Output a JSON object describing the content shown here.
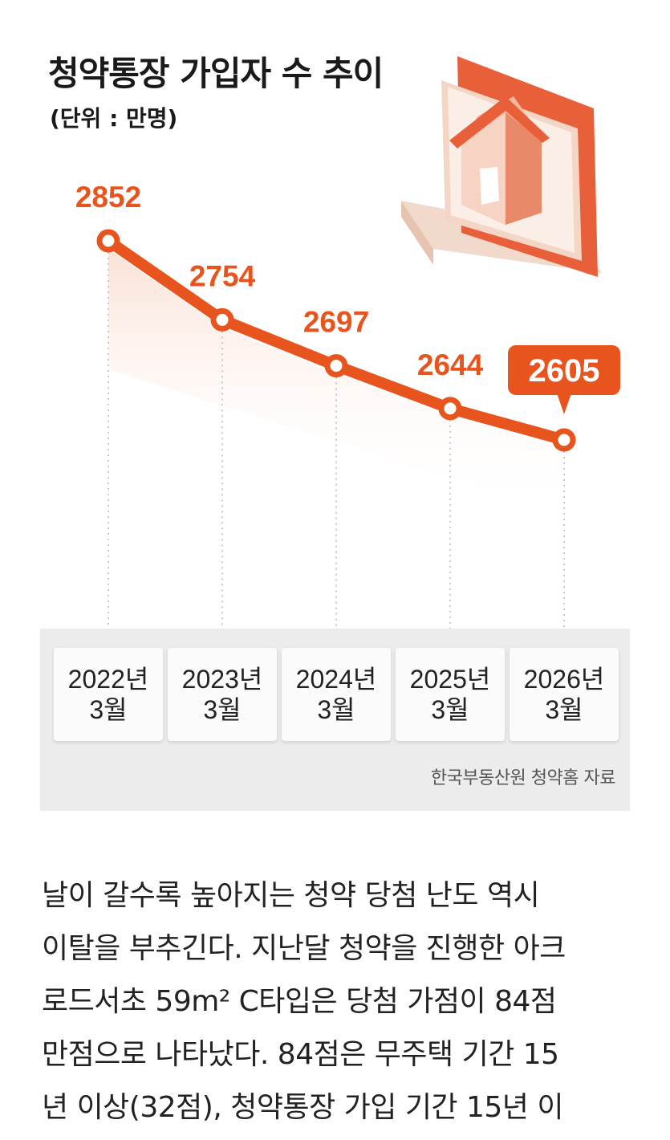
{
  "chart_data": {
    "type": "line",
    "title": "청약통장 가입자 수 추이",
    "subtitle": "(단위 : 만명)",
    "categories": [
      {
        "year": "2022년",
        "month": "3월"
      },
      {
        "year": "2023년",
        "month": "3월"
      },
      {
        "year": "2024년",
        "month": "3월"
      },
      {
        "year": "2025년",
        "month": "3월"
      },
      {
        "year": "2026년",
        "month": "3월"
      }
    ],
    "values": [
      2852,
      2754,
      2697,
      2644,
      2605
    ],
    "highlight_index": 4,
    "source": "한국부동산원 청약홈 자료",
    "line_color": "#e8541e",
    "highlight_color": "#e8541e"
  },
  "article": {
    "lines": [
      "날이 갈수록 높아지는 청약 당첨 난도 역시",
      "이탈을 부추긴다. 지난달 청약을 진행한 아크",
      "로드서초 59m² C타입은 당첨 가점이 84점",
      "만점으로 나타났다. 84점은 무주택 기간 15",
      "년 이상(32점), 청약통장 가입 기간 15년 이"
    ]
  }
}
